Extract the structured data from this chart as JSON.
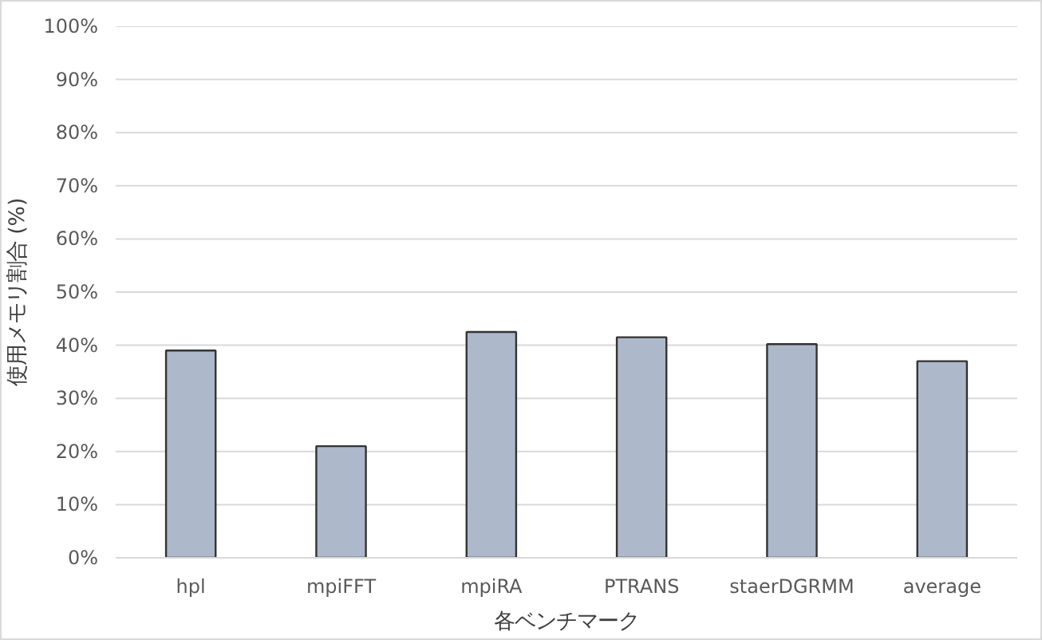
{
  "chart_data": {
    "type": "bar",
    "xlabel": "各ベンチマーク",
    "ylabel": "使用メモリ割合 (%)",
    "categories": [
      "hpl",
      "mpiFFT",
      "mpiRA",
      "PTRANS",
      "staerDGRMM",
      "average"
    ],
    "values": [
      39,
      21,
      42.5,
      41.5,
      40.2,
      37
    ],
    "color": "#adb9ca",
    "ylim": [
      0,
      100
    ],
    "yticks": [
      {
        "value": 0,
        "label": "0%"
      },
      {
        "value": 10,
        "label": "10%"
      },
      {
        "value": 20,
        "label": "20%"
      },
      {
        "value": 30,
        "label": "30%"
      },
      {
        "value": 40,
        "label": "40%"
      },
      {
        "value": 50,
        "label": "50%"
      },
      {
        "value": 60,
        "label": "60%"
      },
      {
        "value": 70,
        "label": "70%"
      },
      {
        "value": 80,
        "label": "80%"
      },
      {
        "value": 90,
        "label": "90%"
      },
      {
        "value": 100,
        "label": "100%"
      }
    ],
    "grid": "y"
  }
}
